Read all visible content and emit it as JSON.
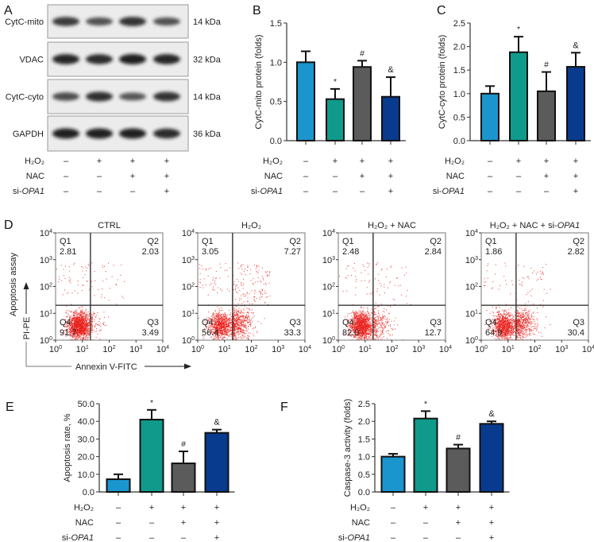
{
  "panel_labels": [
    "A",
    "B",
    "C",
    "D",
    "E",
    "F"
  ],
  "colors": {
    "ctrl": "#1b95ce",
    "h2o2": "#0f9a8b",
    "nac": "#5b5b5b",
    "opa1": "#083a8e",
    "scatter": "#e8231f"
  },
  "conditions": [
    {
      "label": "H₂O₂",
      "values": [
        "–",
        "+",
        "+",
        "+"
      ]
    },
    {
      "label": "NAC",
      "values": [
        "–",
        "–",
        "+",
        "+"
      ]
    },
    {
      "label_prefix": "si-",
      "label_italic": "OPA1",
      "values": [
        "–",
        "–",
        "–",
        "+"
      ]
    }
  ],
  "western_blot": {
    "bands": [
      {
        "name": "CytC-mito",
        "size": "14 kDa",
        "intensity": [
          0.75,
          0.55,
          0.8,
          0.55
        ]
      },
      {
        "name": "VDAC",
        "size": "32 kDa",
        "intensity": [
          0.95,
          0.9,
          1.0,
          0.95
        ]
      },
      {
        "name": "CytC-cyto",
        "size": "14 kDa",
        "intensity": [
          0.6,
          0.85,
          0.5,
          0.8
        ]
      },
      {
        "name": "GAPDH",
        "size": "36 kDa",
        "intensity": [
          1.0,
          1.0,
          1.0,
          0.9
        ]
      }
    ]
  },
  "chart_data": [
    {
      "panel": "B",
      "type": "bar",
      "ylabel": "CytC-mito protein (folds)",
      "ylim": [
        0,
        1.5
      ],
      "yticks": [
        "0.0",
        "0.5",
        "1.0",
        "1.5"
      ],
      "ytick_values": [
        0,
        0.5,
        1,
        1.5
      ],
      "values": [
        1.0,
        0.53,
        0.94,
        0.56
      ],
      "errors": [
        0.14,
        0.13,
        0.08,
        0.25
      ],
      "annotations": [
        "",
        "*",
        "#",
        "&"
      ]
    },
    {
      "panel": "C",
      "type": "bar",
      "ylabel": "CytC-cyto protein (folds)",
      "ylim": [
        0,
        2.5
      ],
      "yticks": [
        "0.0",
        "0.5",
        "1.0",
        "1.5",
        "2.0",
        "2.5"
      ],
      "ytick_values": [
        0,
        0.5,
        1,
        1.5,
        2,
        2.5
      ],
      "values": [
        1.0,
        1.88,
        1.05,
        1.57
      ],
      "errors": [
        0.16,
        0.33,
        0.41,
        0.3
      ],
      "annotations": [
        "",
        "*",
        "#",
        "&"
      ]
    },
    {
      "panel": "D",
      "type": "scatter",
      "xlabel": "Annexin V-FITC",
      "ylabel_top": "Apoptosis assay",
      "ylabel_bottom": "PI-PE",
      "axis_ticks": [
        "0",
        "1",
        "2",
        "3",
        "4"
      ],
      "axis_base": "10",
      "plots": [
        {
          "title": "CTRL",
          "q1": "2.81",
          "q2": "2.03",
          "q3": "3.49",
          "q4": "91.7"
        },
        {
          "title": "H₂O₂",
          "q1": "3.05",
          "q2": "7.27",
          "q3": "33.3",
          "q4": "56.4"
        },
        {
          "title": "H₂O₂ + NAC",
          "q1": "2.48",
          "q2": "2.84",
          "q3": "12.7",
          "q4": "82.0"
        },
        {
          "title_prefix": "H₂O₂ + NAC + si-",
          "title_italic": "OPA1",
          "q1": "1.86",
          "q2": "2.82",
          "q3": "30.4",
          "q4": "64.9"
        }
      ],
      "quadrant_names": [
        "Q1",
        "Q2",
        "Q3",
        "Q4"
      ]
    },
    {
      "panel": "E",
      "type": "bar",
      "ylabel": "Apoptosis rate, %",
      "ylim": [
        0,
        50
      ],
      "yticks": [
        "0.0",
        "10.0",
        "20.0",
        "30.0",
        "40.0",
        "50.0"
      ],
      "ytick_values": [
        0,
        10,
        20,
        30,
        40,
        50
      ],
      "values": [
        7.2,
        41.0,
        16.2,
        33.5
      ],
      "errors": [
        2.8,
        5.5,
        6.8,
        1.8
      ],
      "annotations": [
        "",
        "*",
        "#",
        "&"
      ]
    },
    {
      "panel": "F",
      "type": "bar",
      "ylabel": "Caspase-3 activity (folds)",
      "ylim": [
        0,
        2.5
      ],
      "yticks": [
        "0.0",
        "0.5",
        "1.0",
        "1.5",
        "2.0",
        "2.5"
      ],
      "ytick_values": [
        0,
        0.5,
        1,
        1.5,
        2,
        2.5
      ],
      "values": [
        1.0,
        2.08,
        1.23,
        1.93
      ],
      "errors": [
        0.08,
        0.21,
        0.11,
        0.07
      ],
      "annotations": [
        "",
        "*",
        "#",
        "&"
      ]
    }
  ]
}
